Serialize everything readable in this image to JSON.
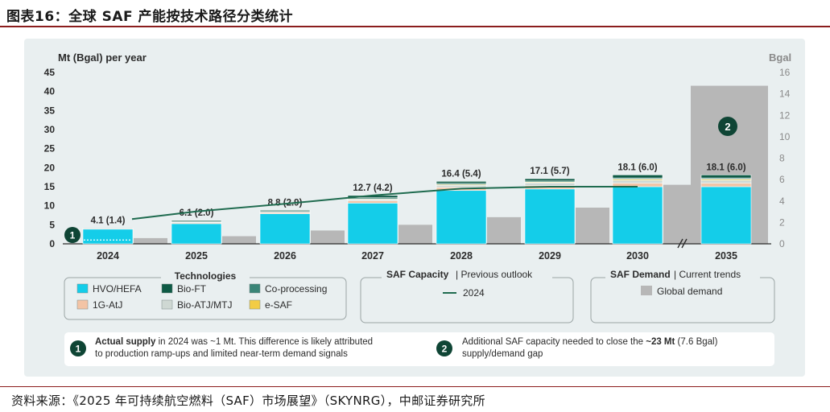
{
  "figure_title": "图表16：全球 SAF 产能按技术路径分类统计",
  "source": "资料来源：《2025 年可持续航空燃料（SAF）市场展望》（SKYNRG），中邮证券研究所",
  "colors": {
    "hvo": "#14cde9",
    "biofto": "#0e5a45",
    "coproc": "#3a8577",
    "g1atj": "#f3c4a5",
    "bioatj": "#cfd8d3",
    "esaf": "#f2cc45",
    "demand": "#b7b7b7",
    "line": "#1f6b4f",
    "badge": "#0f4535"
  },
  "chart_data": {
    "type": "bar",
    "ylabel": "Mt (Bgal) per year",
    "ylabel_right": "Bgal",
    "ylim": [
      0,
      45
    ],
    "yticks": [
      0,
      5,
      10,
      15,
      20,
      25,
      30,
      35,
      40,
      45
    ],
    "ylim_right": [
      0,
      16
    ],
    "yticks_right": [
      0,
      2,
      4,
      6,
      8,
      10,
      12,
      14,
      16
    ],
    "categories": [
      "2024",
      "2025",
      "2026",
      "2027",
      "2028",
      "2029",
      "2030",
      "2035"
    ],
    "series": [
      {
        "name": "HVO/HEFA",
        "key": "hvo",
        "values": [
          3.9,
          5.3,
          7.9,
          10.7,
          14.0,
          14.4,
          15.0,
          15.0
        ]
      },
      {
        "name": "1G-AtJ",
        "key": "g1atj",
        "values": [
          0.1,
          0.3,
          0.3,
          0.6,
          0.8,
          0.9,
          0.9,
          0.9
        ]
      },
      {
        "name": "Bio-ATJ/MTJ",
        "key": "bioatj",
        "values": [
          0.0,
          0.1,
          0.2,
          0.4,
          0.6,
          0.7,
          0.8,
          0.8
        ]
      },
      {
        "name": "e-SAF",
        "key": "esaf",
        "values": [
          0.0,
          0.0,
          0.0,
          0.1,
          0.2,
          0.2,
          0.3,
          0.3
        ]
      },
      {
        "name": "Co-processing",
        "key": "coproc",
        "values": [
          0.0,
          0.1,
          0.1,
          0.3,
          0.3,
          0.3,
          0.3,
          0.3
        ]
      },
      {
        "name": "Bio-FT",
        "key": "biofto",
        "values": [
          0.1,
          0.3,
          0.3,
          0.6,
          0.5,
          0.6,
          0.8,
          0.8
        ]
      }
    ],
    "bar_labels": [
      "4.1 (1.4)",
      "6.1 (2.0)",
      "8.8 (2.9)",
      "12.7 (4.2)",
      "16.4 (5.4)",
      "17.1 (5.7)",
      "18.1 (6.0)",
      "18.1 (6.0)"
    ],
    "demand": {
      "name": "Global demand",
      "values": [
        1.5,
        2.0,
        3.5,
        5.0,
        7.0,
        9.5,
        15.5,
        41.5
      ]
    },
    "previous_outlook": {
      "name": "2024",
      "values": [
        6.5,
        8.5,
        10.5,
        12.7,
        14.5,
        15.0,
        15.0
      ]
    },
    "legend_groups": [
      {
        "title": "Technologies",
        "items": [
          "HVO/HEFA",
          "Bio-FT",
          "Co-processing",
          "1G-AtJ",
          "Bio-ATJ/MTJ",
          "e-SAF"
        ]
      },
      {
        "title": "SAF Capacity",
        "subtitle": "Previous outlook",
        "items": [
          "2024"
        ]
      },
      {
        "title": "SAF Demand",
        "subtitle": "Current trends",
        "items": [
          "Global demand"
        ]
      }
    ],
    "notes": [
      {
        "badge": "1",
        "line1_bold": "Actual supply",
        "line1": " in 2024 was ~1 Mt. This difference is likely attributed",
        "line2": "to production ramp-ups and limited near-term demand signals"
      },
      {
        "badge": "2",
        "line1": "Additional SAF capacity needed to close the ",
        "line1_bold": "~23 Mt",
        "line1_tail": " (7.6 Bgal)",
        "line2": "supply/demand gap"
      }
    ]
  }
}
